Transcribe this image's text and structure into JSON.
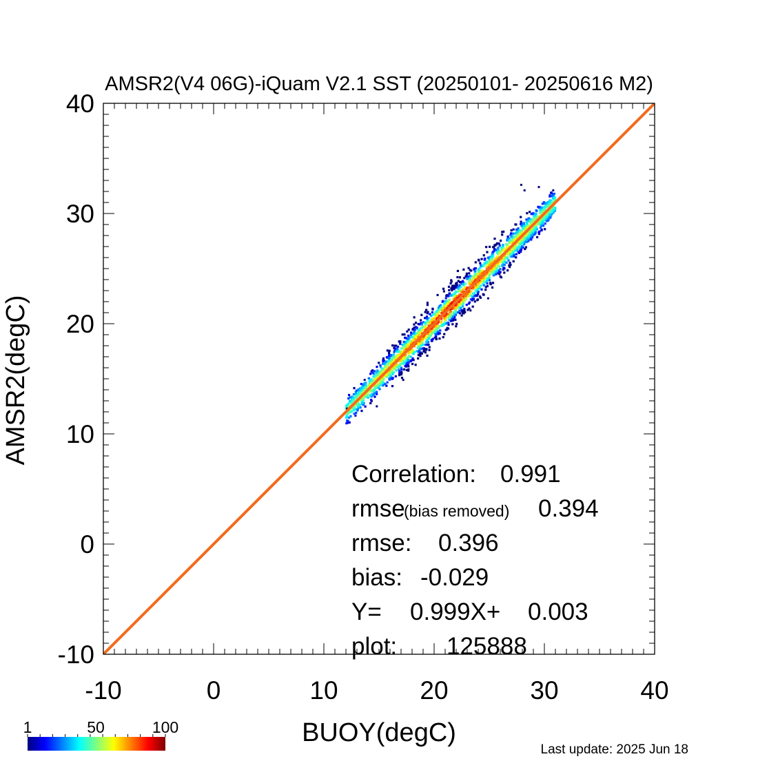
{
  "chart_data": {
    "type": "scatter",
    "subtype": "density-heatmap-scatter",
    "title": "AMSR2(V4 06G)-iQuam V2.1 SST (20250101- 20250616 M2)",
    "xlabel": "BUOY(degC)",
    "ylabel": "AMSR2(degC)",
    "xlim": [
      -10,
      40
    ],
    "ylim": [
      -10,
      40
    ],
    "xticks": [
      -10,
      0,
      10,
      20,
      30,
      40
    ],
    "yticks": [
      -10,
      0,
      10,
      20,
      30,
      40
    ],
    "tick_labels": {
      "x": [
        "-10",
        "0",
        "10",
        "20",
        "30",
        "40"
      ],
      "y": [
        "-10",
        "0",
        "10",
        "20",
        "30",
        "40"
      ]
    },
    "minor_tick_step": 1,
    "grid": false,
    "one_to_one_line": {
      "from": [
        -10,
        -10
      ],
      "to": [
        40,
        40
      ],
      "color": "#f26b1d"
    },
    "regression_line": {
      "slope": 0.999,
      "intercept": 0.003,
      "color": "#1f3fcf"
    },
    "density_cloud": {
      "x_range": [
        12,
        31
      ],
      "center_slope": 1.0,
      "center_offset": 0.0,
      "spread_degC": 0.6,
      "outlier_points": [
        [
          12.1,
          12.3
        ],
        [
          14.8,
          12.5
        ],
        [
          13.7,
          14.9
        ],
        [
          27.9,
          32.6
        ],
        [
          28.2,
          32.1
        ],
        [
          29.5,
          32.4
        ],
        [
          26.1,
          24.2
        ],
        [
          24.9,
          22.3
        ],
        [
          23.3,
          21.2
        ],
        [
          30.8,
          32.1
        ],
        [
          17.2,
          14.9
        ],
        [
          19.4,
          21.9
        ]
      ]
    },
    "stats": {
      "correlation_label": "Correlation:",
      "correlation_value": "0.991",
      "rmse_br_label": "rmse",
      "rmse_br_sub": "(bias removed)",
      "rmse_br_value": "0.394",
      "rmse_label": "rmse:",
      "rmse_value": "0.396",
      "bias_label": "bias:",
      "bias_value": "-0.029",
      "fit_label": "Y=",
      "fit_slope_text": "0.999X+",
      "fit_intercept_text": "0.003",
      "count_label": "plot:",
      "count_value": "125888"
    },
    "colorbar": {
      "ticks": [
        "1",
        "50",
        "100"
      ],
      "range": [
        1,
        100
      ],
      "colors": [
        "#00007f",
        "#0000ff",
        "#007fff",
        "#00ffff",
        "#7fff7f",
        "#ffff00",
        "#ff7f00",
        "#ff0000",
        "#7f0000"
      ]
    }
  },
  "footer": {
    "last_update": "Last update: 2025 Jun 18"
  }
}
